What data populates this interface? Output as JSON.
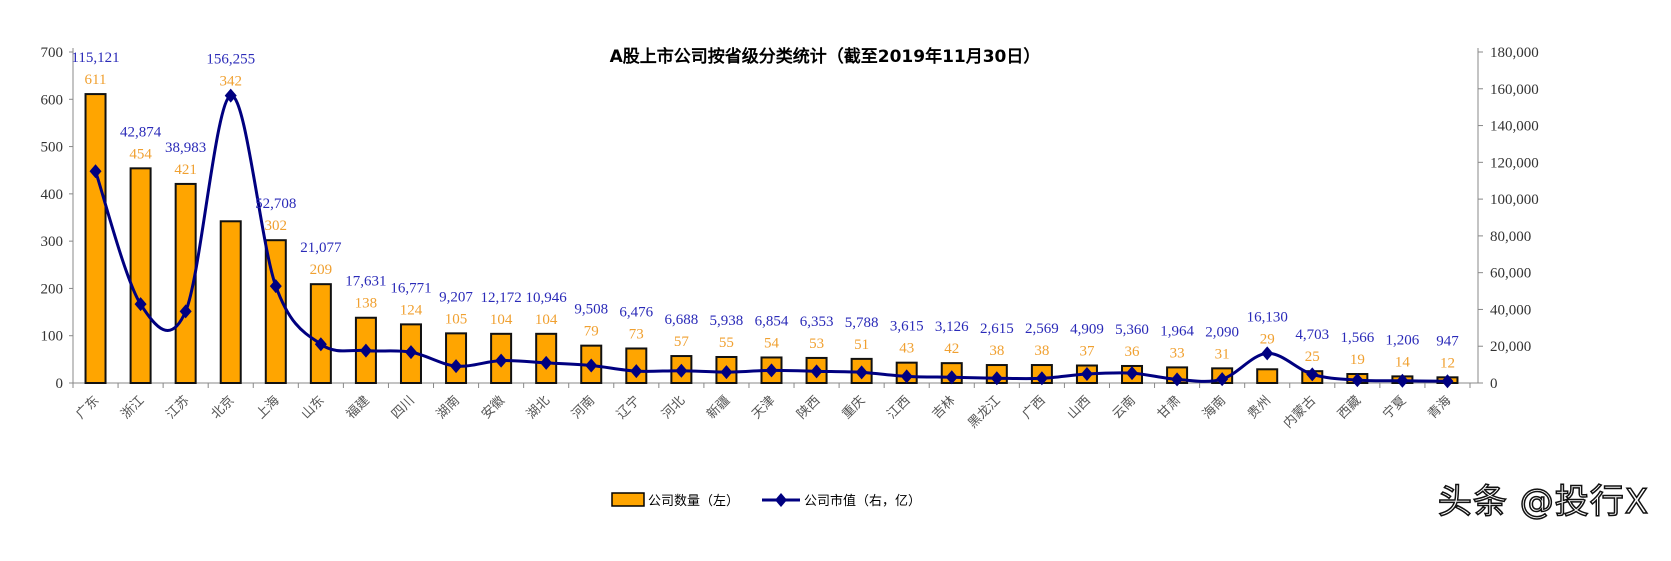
{
  "chart_data": {
    "type": "bar+line",
    "title": "A股上市公司按省级分类统计（截至2019年11月30日）",
    "categories": [
      "广东",
      "浙江",
      "江苏",
      "北京",
      "上海",
      "山东",
      "福建",
      "四川",
      "湖南",
      "安徽",
      "湖北",
      "河南",
      "辽宁",
      "河北",
      "新疆",
      "天津",
      "陕西",
      "重庆",
      "江西",
      "吉林",
      "黑龙江",
      "广西",
      "山西",
      "云南",
      "甘肃",
      "海南",
      "贵州",
      "内蒙古",
      "西藏",
      "宁夏",
      "青海"
    ],
    "series": [
      {
        "name": "公司数量（左）",
        "type": "bar",
        "axis": "left",
        "color": "#FFA500",
        "values": [
          611,
          454,
          421,
          342,
          302,
          209,
          138,
          124,
          105,
          104,
          104,
          79,
          73,
          57,
          55,
          54,
          53,
          51,
          43,
          42,
          38,
          38,
          37,
          36,
          33,
          31,
          29,
          25,
          19,
          14,
          12
        ]
      },
      {
        "name": "公司市值（右，亿）",
        "type": "line",
        "axis": "right",
        "color": "#000080",
        "values": [
          115121,
          42874,
          38983,
          156255,
          52708,
          21077,
          17631,
          16771,
          9207,
          12172,
          10946,
          9508,
          6476,
          6688,
          5938,
          6854,
          6353,
          5788,
          3615,
          3126,
          2615,
          2569,
          4909,
          5360,
          1964,
          2090,
          16130,
          4703,
          1566,
          1206,
          947
        ]
      }
    ],
    "left_axis": {
      "ylim": [
        0,
        700
      ],
      "ticks": [
        "0",
        "100",
        "200",
        "300",
        "400",
        "500",
        "600",
        "700"
      ]
    },
    "right_axis": {
      "ylim": [
        0,
        180000
      ],
      "ticks": [
        "0",
        "20,000",
        "40,000",
        "60,000",
        "80,000",
        "100,000",
        "120,000",
        "140,000",
        "160,000",
        "180,000"
      ]
    },
    "grid": false,
    "legend_position": "bottom"
  },
  "watermark": "头条 @投行X"
}
